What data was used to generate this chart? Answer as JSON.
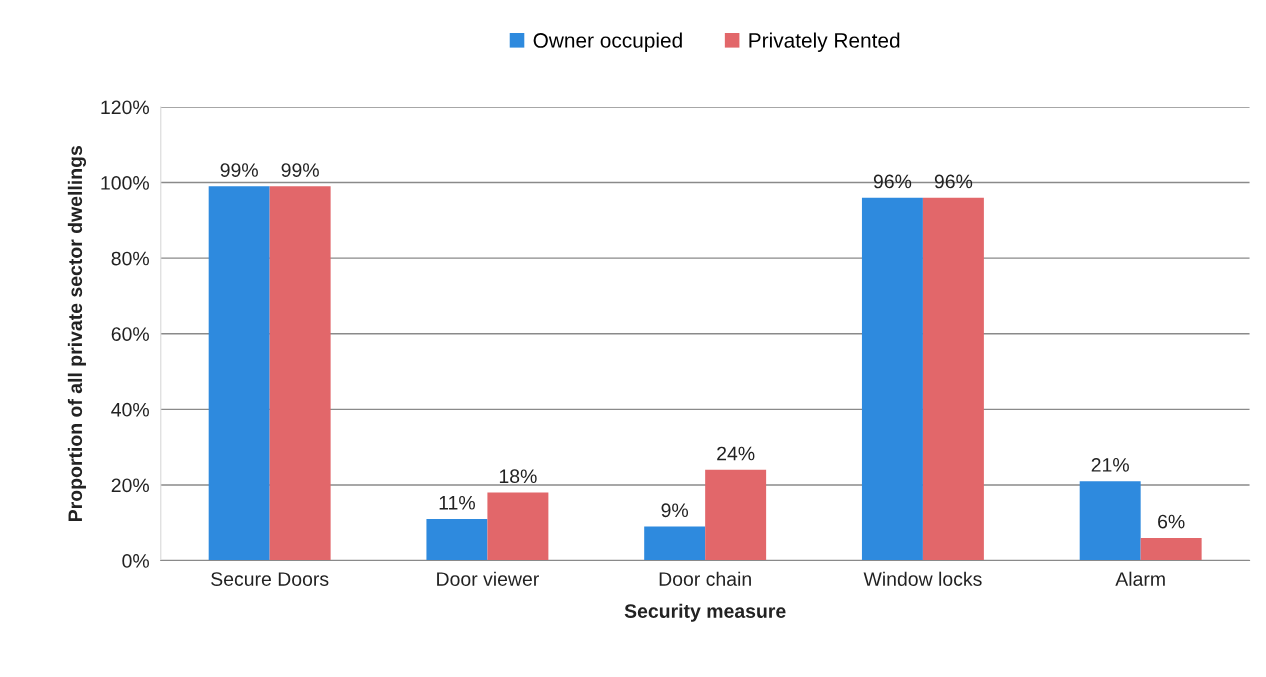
{
  "chart_data": {
    "type": "bar",
    "xlabel": "Security measure",
    "ylabel": "Proportion of all private sector dwellings",
    "categories": [
      "Secure Doors",
      "Door viewer",
      "Door chain",
      "Window locks",
      "Alarm"
    ],
    "series": [
      {
        "name": "Owner occupied",
        "color": "#2e8ade",
        "values": [
          99,
          11,
          9,
          96,
          21
        ],
        "value_labels": [
          "99%",
          "11%",
          "9%",
          "96%",
          "21%"
        ]
      },
      {
        "name": "Privately Rented",
        "color": "#e2676a",
        "values": [
          99,
          18,
          24,
          96,
          6
        ],
        "value_labels": [
          "99%",
          "18%",
          "24%",
          "96%",
          "6%"
        ]
      }
    ],
    "ylim": [
      0,
      120
    ],
    "yticks": [
      {
        "value": 0,
        "label": "0%"
      },
      {
        "value": 20,
        "label": "20%"
      },
      {
        "value": 40,
        "label": "40%"
      },
      {
        "value": 60,
        "label": "60%"
      },
      {
        "value": 80,
        "label": "80%"
      },
      {
        "value": 100,
        "label": "100%"
      },
      {
        "value": 120,
        "label": "120%"
      }
    ],
    "grid": "y",
    "legend": "top"
  }
}
